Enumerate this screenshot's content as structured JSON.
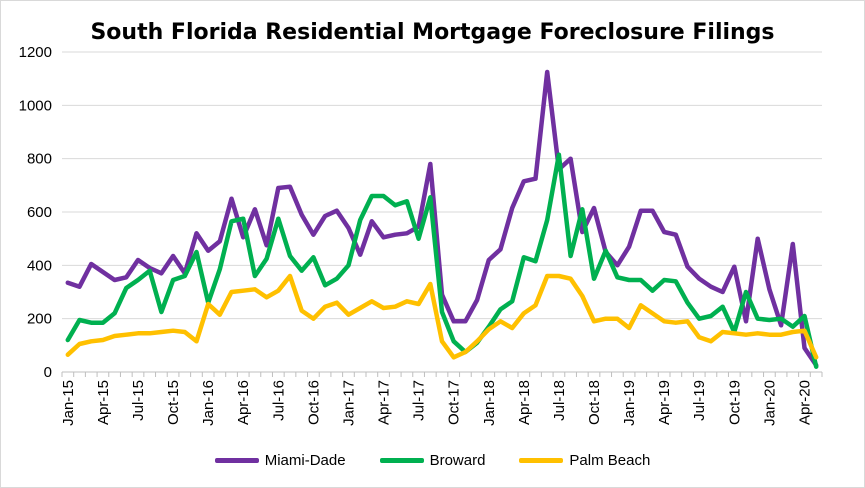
{
  "chart_data": {
    "type": "line",
    "title": "South Florida Residential Mortgage Foreclosure Filings",
    "xlabel": "",
    "ylabel": "",
    "ylim": [
      0,
      1200
    ],
    "yticks": [
      "0",
      "200",
      "400",
      "600",
      "800",
      "1000",
      "1200"
    ],
    "grid": true,
    "legend_position": "bottom",
    "x": [
      "Jan-15",
      "Feb-15",
      "Mar-15",
      "Apr-15",
      "May-15",
      "Jun-15",
      "Jul-15",
      "Aug-15",
      "Sep-15",
      "Oct-15",
      "Nov-15",
      "Dec-15",
      "Jan-16",
      "Feb-16",
      "Mar-16",
      "Apr-16",
      "May-16",
      "Jun-16",
      "Jul-16",
      "Aug-16",
      "Sep-16",
      "Oct-16",
      "Nov-16",
      "Dec-16",
      "Jan-17",
      "Feb-17",
      "Mar-17",
      "Apr-17",
      "May-17",
      "Jun-17",
      "Jul-17",
      "Aug-17",
      "Sep-17",
      "Oct-17",
      "Nov-17",
      "Dec-17",
      "Jan-18",
      "Feb-18",
      "Mar-18",
      "Apr-18",
      "May-18",
      "Jun-18",
      "Jul-18",
      "Aug-18",
      "Sep-18",
      "Oct-18",
      "Nov-18",
      "Dec-18",
      "Jan-19",
      "Feb-19",
      "Mar-19",
      "Apr-19",
      "May-19",
      "Jun-19",
      "Jul-19",
      "Aug-19",
      "Sep-19",
      "Oct-19",
      "Nov-19",
      "Dec-19",
      "Jan-20",
      "Feb-20",
      "Mar-20",
      "Apr-20",
      "May-20"
    ],
    "x_tick_labels": [
      "Jan-15",
      "Apr-15",
      "Jul-15",
      "Oct-15",
      "Jan-16",
      "Apr-16",
      "Jul-16",
      "Oct-16",
      "Jan-17",
      "Apr-17",
      "Jul-17",
      "Oct-17",
      "Jan-18",
      "Apr-18",
      "Jul-18",
      "Oct-18",
      "Jan-19",
      "Apr-19",
      "Jul-19",
      "Oct-19",
      "Jan-20",
      "Apr-20"
    ],
    "series": [
      {
        "name": "Miami-Dade",
        "color": "#7030A0",
        "values": [
          335,
          320,
          405,
          375,
          345,
          355,
          420,
          390,
          370,
          435,
          370,
          520,
          455,
          490,
          650,
          505,
          610,
          475,
          690,
          695,
          590,
          515,
          585,
          605,
          540,
          440,
          565,
          505,
          515,
          520,
          545,
          780,
          290,
          190,
          190,
          270,
          420,
          460,
          615,
          715,
          725,
          1125,
          760,
          800,
          525,
          615,
          450,
          400,
          470,
          605,
          605,
          525,
          515,
          395,
          350,
          320,
          300,
          395,
          190,
          500,
          310,
          175,
          480,
          90,
          25
        ]
      },
      {
        "name": "Broward",
        "color": "#00B050",
        "values": [
          120,
          195,
          185,
          185,
          220,
          315,
          345,
          380,
          225,
          345,
          360,
          450,
          260,
          385,
          565,
          575,
          360,
          425,
          575,
          435,
          380,
          430,
          325,
          350,
          400,
          570,
          660,
          660,
          625,
          640,
          500,
          655,
          225,
          115,
          75,
          110,
          170,
          235,
          265,
          430,
          415,
          570,
          815,
          435,
          610,
          350,
          455,
          355,
          345,
          345,
          305,
          345,
          340,
          260,
          200,
          210,
          245,
          150,
          300,
          200,
          195,
          200,
          170,
          210,
          20
        ]
      },
      {
        "name": "Palm Beach",
        "color": "#FFC000",
        "values": [
          65,
          105,
          115,
          120,
          135,
          140,
          145,
          145,
          150,
          155,
          150,
          115,
          255,
          215,
          300,
          305,
          310,
          280,
          305,
          360,
          230,
          200,
          245,
          260,
          215,
          240,
          265,
          240,
          245,
          265,
          255,
          330,
          115,
          55,
          75,
          115,
          160,
          190,
          165,
          220,
          250,
          360,
          360,
          350,
          285,
          190,
          200,
          200,
          165,
          250,
          220,
          190,
          185,
          190,
          130,
          115,
          150,
          145,
          140,
          145,
          140,
          140,
          150,
          155,
          55
        ]
      }
    ]
  }
}
